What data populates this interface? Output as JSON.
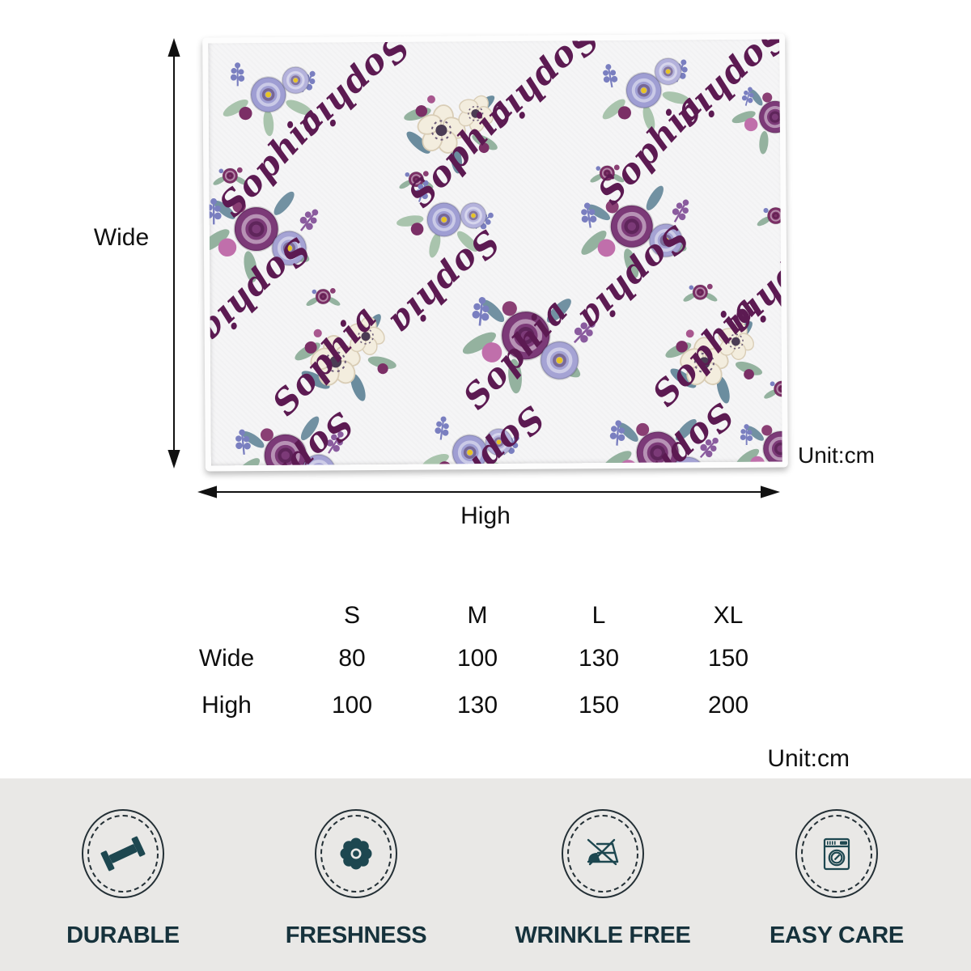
{
  "diagram": {
    "blanket_name": "Sophia",
    "wide_label": "Wide",
    "high_label": "High",
    "unit_label": "Unit:cm"
  },
  "size_table": {
    "columns": [
      "S",
      "M",
      "L",
      "XL"
    ],
    "rows": [
      {
        "label": "Wide",
        "values": [
          "80",
          "100",
          "130",
          "150"
        ]
      },
      {
        "label": "High",
        "values": [
          "100",
          "130",
          "150",
          "200"
        ]
      }
    ],
    "unit_label": "Unit:cm"
  },
  "features": [
    {
      "label": "DURABLE",
      "icon": "dumbbell-icon"
    },
    {
      "label": "FRESHNESS",
      "icon": "flower-icon"
    },
    {
      "label": "WRINKLE FREE",
      "icon": "no-iron-icon"
    },
    {
      "label": "EASY CARE",
      "icon": "washing-machine-icon"
    }
  ],
  "colors": {
    "name_text": "#5c1a52",
    "icon_glyph": "#1d4750",
    "strip_background": "#e9e8e6"
  }
}
